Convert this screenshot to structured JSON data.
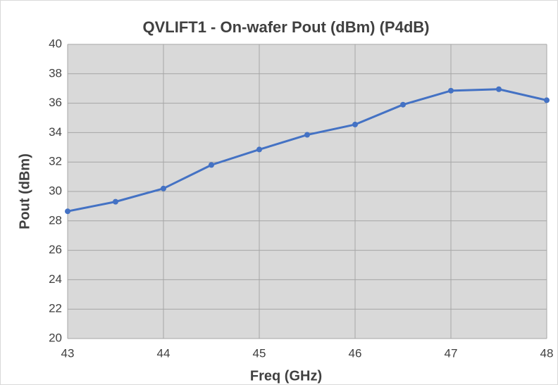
{
  "chart_data": {
    "type": "line",
    "title": "QVLIFT1  -  On-wafer Pout (dBm) (P4dB)",
    "x_label": "Freq (GHz)",
    "y_label": "Pout  (dBm)",
    "x": [
      43,
      43.5,
      44,
      44.5,
      45,
      45.5,
      46,
      46.5,
      47,
      47.5,
      48
    ],
    "values": [
      28.65,
      29.3,
      30.2,
      31.8,
      32.85,
      33.85,
      34.55,
      35.9,
      36.85,
      36.95,
      36.2
    ],
    "color": "#4472c4",
    "xlim": [
      43,
      48
    ],
    "xticks": [
      43,
      44,
      45,
      46,
      47,
      48
    ],
    "ylim": [
      20,
      40
    ],
    "yticks": [
      20,
      22,
      24,
      26,
      28,
      30,
      32,
      34,
      36,
      38,
      40
    ],
    "grid": true
  }
}
